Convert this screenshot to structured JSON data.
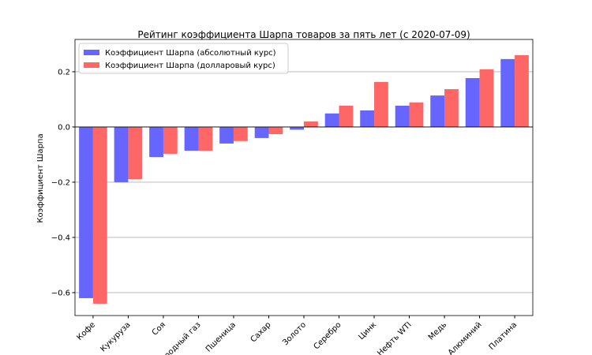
{
  "chart_data": {
    "type": "bar",
    "title": "Рейтинг коэффициента Шарпа товаров за пять лет (с 2020-07-09)",
    "y_label": "Коэффициент Шарпа",
    "categories": [
      "Кофе",
      "Кукуруза",
      "Соя",
      "Природный газ",
      "Пшеница",
      "Сахар",
      "Золото",
      "Серебро",
      "Цинк",
      "Нефть WTI",
      "Медь",
      "Алюминий",
      "Платина"
    ],
    "series": [
      {
        "name": "Коэффициент Шарпа (абсолютный курс)",
        "color": "#6666ff",
        "values": [
          -0.62,
          -0.2,
          -0.109,
          -0.086,
          -0.06,
          -0.04,
          -0.01,
          0.049,
          0.06,
          0.077,
          0.114,
          0.177,
          0.246
        ]
      },
      {
        "name": "Коэффициент Шарпа (долларовый курс)",
        "color": "#ff6666",
        "values": [
          -0.64,
          -0.189,
          -0.097,
          -0.086,
          -0.051,
          -0.026,
          0.02,
          0.077,
          0.163,
          0.089,
          0.137,
          0.209,
          0.26
        ]
      }
    ],
    "ylim": [
      -0.683,
      0.317
    ],
    "yticks": [
      {
        "value": -0.6,
        "label": "−0.6"
      },
      {
        "value": -0.4,
        "label": "−0.4"
      },
      {
        "value": -0.2,
        "label": "−0.2"
      },
      {
        "value": 0,
        "label": "0.0"
      },
      {
        "value": 0.2,
        "label": "0.2"
      }
    ],
    "grid": true,
    "legend": "upper left"
  }
}
